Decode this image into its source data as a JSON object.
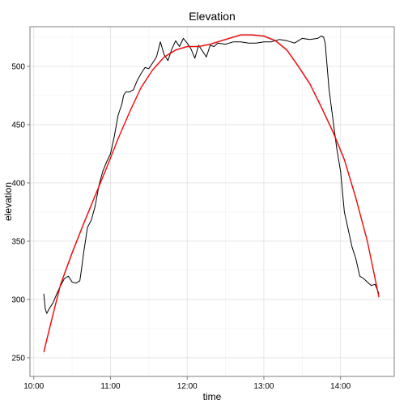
{
  "chart_data": {
    "type": "line",
    "title": "Elevation",
    "xlabel": "time",
    "ylabel": "elevation",
    "x_ticks": [
      "10:00",
      "11:00",
      "12:00",
      "13:00",
      "14:00"
    ],
    "x_tick_values": [
      10,
      11,
      12,
      13,
      14
    ],
    "y_ticks": [
      250,
      300,
      350,
      400,
      450,
      500
    ],
    "xlim": [
      9.95,
      14.7
    ],
    "ylim": [
      234,
      534
    ],
    "grid": true,
    "background": "#ffffff",
    "series": [
      {
        "color": "#000000",
        "x": [
          10.13,
          10.15,
          10.17,
          10.2,
          10.25,
          10.3,
          10.35,
          10.4,
          10.45,
          10.5,
          10.55,
          10.6,
          10.62,
          10.65,
          10.7,
          10.75,
          10.8,
          10.85,
          10.9,
          10.95,
          11.0,
          11.05,
          11.1,
          11.15,
          11.17,
          11.2,
          11.25,
          11.3,
          11.35,
          11.4,
          11.45,
          11.5,
          11.55,
          11.6,
          11.65,
          11.7,
          11.75,
          11.8,
          11.85,
          11.9,
          11.95,
          12.0,
          12.05,
          12.1,
          12.15,
          12.2,
          12.25,
          12.3,
          12.35,
          12.4,
          12.5,
          12.6,
          12.7,
          12.8,
          12.9,
          13.0,
          13.1,
          13.2,
          13.3,
          13.4,
          13.5,
          13.6,
          13.7,
          13.75,
          13.78,
          13.8,
          13.85,
          13.9,
          13.95,
          14.0,
          14.05,
          14.1,
          14.15,
          14.2,
          14.25,
          14.3,
          14.35,
          14.4,
          14.45,
          14.5
        ],
        "y": [
          305,
          292,
          288,
          292,
          297,
          305,
          312,
          318,
          320,
          315,
          314,
          316,
          325,
          340,
          362,
          368,
          380,
          398,
          410,
          418,
          425,
          440,
          458,
          468,
          475,
          478,
          478,
          480,
          488,
          494,
          499,
          498,
          503,
          508,
          521,
          510,
          505,
          515,
          522,
          517,
          524,
          520,
          515,
          507,
          518,
          513,
          508,
          518,
          517,
          520,
          519,
          521,
          521,
          520,
          520,
          521,
          521,
          523,
          522,
          520,
          524,
          523,
          524,
          526,
          525,
          520,
          480,
          455,
          430,
          410,
          375,
          360,
          345,
          335,
          320,
          318,
          315,
          312,
          313,
          305
        ]
      },
      {
        "color": "#ff0000",
        "x": [
          10.13,
          10.25,
          10.35,
          10.5,
          10.65,
          10.8,
          10.95,
          11.1,
          11.25,
          11.4,
          11.55,
          11.7,
          11.85,
          12.0,
          12.15,
          12.3,
          12.5,
          12.7,
          12.85,
          13.0,
          13.15,
          13.3,
          13.45,
          13.6,
          13.75,
          13.9,
          14.05,
          14.2,
          14.35,
          14.5
        ],
        "y": [
          255,
          287,
          313,
          340,
          365,
          389,
          413,
          438,
          461,
          482,
          497,
          508,
          514,
          517,
          517,
          519,
          523,
          527,
          527,
          526,
          522,
          514,
          500,
          485,
          465,
          444,
          420,
          387,
          350,
          302
        ]
      }
    ]
  }
}
